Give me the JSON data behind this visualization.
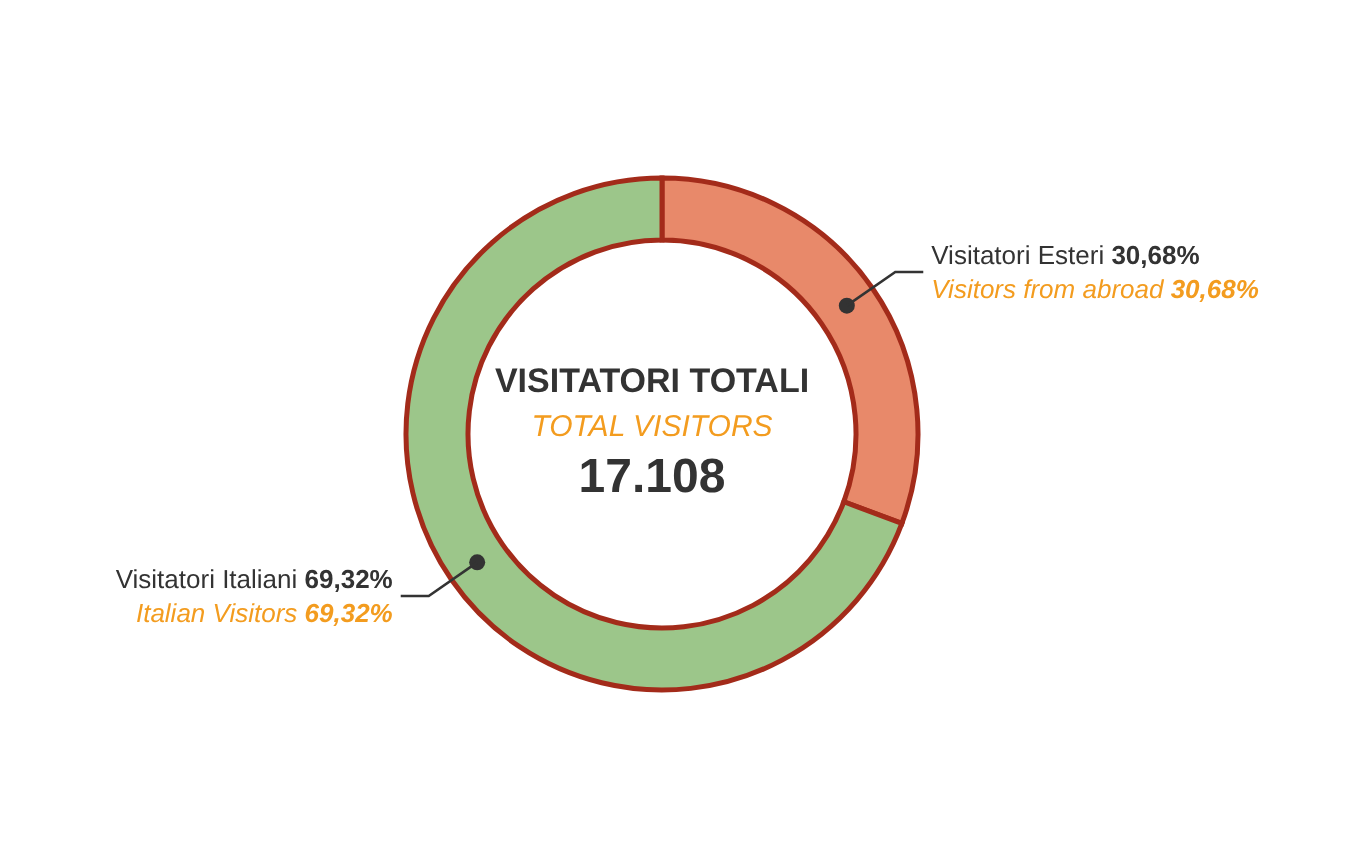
{
  "chart_data": {
    "type": "donut",
    "title": "VISITATORI TOTALI",
    "subtitle": "TOTAL VISITORS",
    "annotations": [
      "17.108",
      "Visitors from abroad",
      "Italian Visitors"
    ],
    "categories": [
      "Visitatori Esteri",
      "Visitatori Italiani"
    ],
    "values": [
      30.68,
      69.32
    ],
    "colors": [
      "#e8896a",
      "#9cc68a"
    ],
    "value_labels": [
      "30,68%",
      "69,32%"
    ],
    "legend": false
  }
}
